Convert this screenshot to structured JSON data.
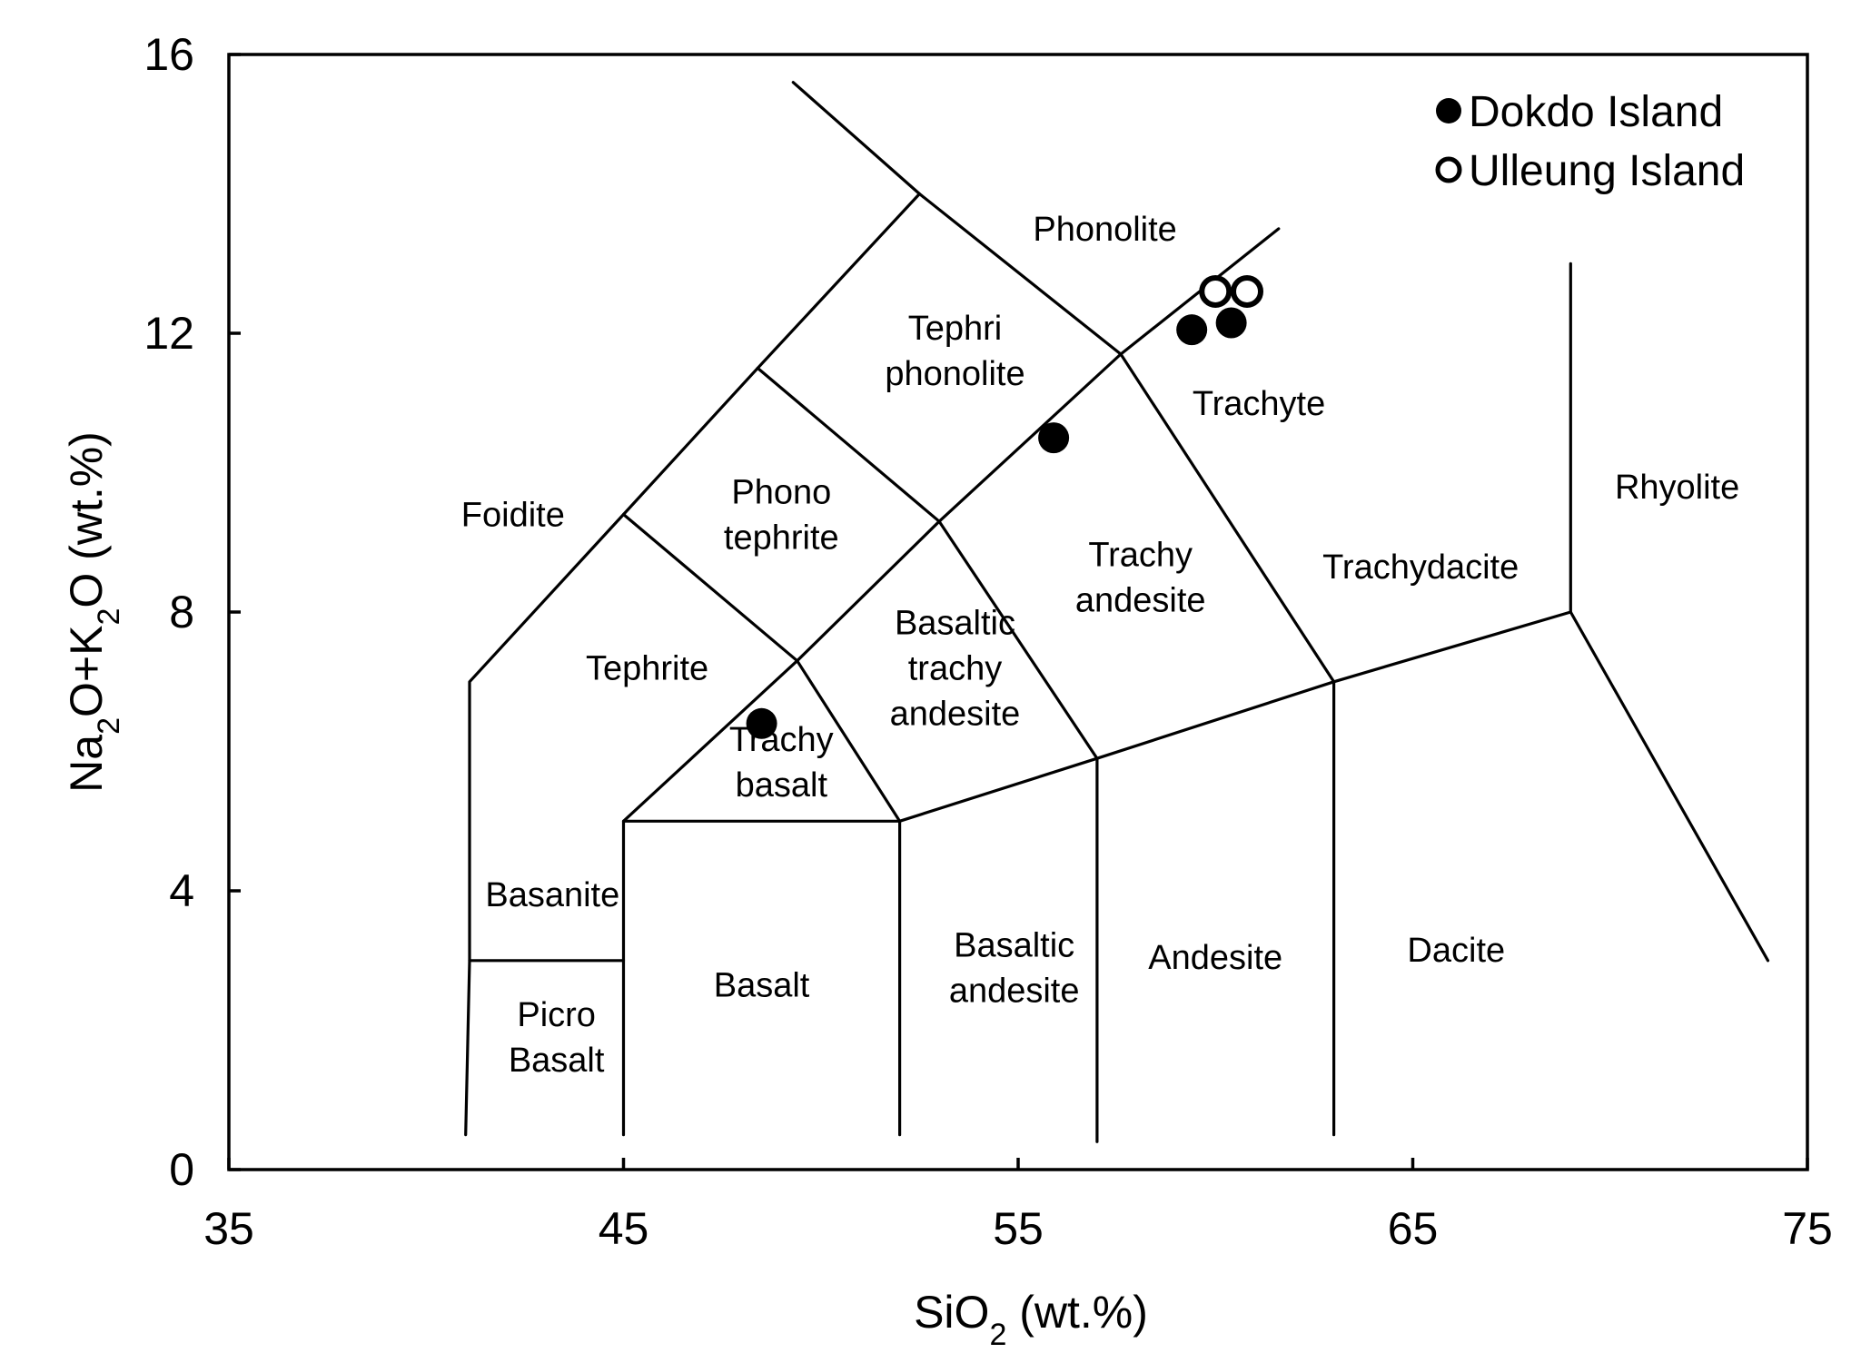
{
  "chart_data": {
    "type": "scatter",
    "title": "",
    "xlabel": {
      "main": "SiO",
      "sub": "2",
      "tail": " (wt.%)"
    },
    "ylabel": {
      "a": "Na",
      "sub1": "2",
      "b": "O+K",
      "sub2": "2",
      "c": "O (wt.%)"
    },
    "xlim": [
      35,
      75
    ],
    "ylim": [
      0,
      16
    ],
    "xticks": [
      35,
      45,
      55,
      65,
      75
    ],
    "yticks": [
      0,
      4,
      8,
      12,
      16
    ],
    "legend_position": "top-right",
    "series": [
      {
        "name": "Dokdo Island",
        "marker": "filled-circle",
        "color": "#000000",
        "points": [
          [
            48.5,
            6.4
          ],
          [
            55.9,
            10.5
          ],
          [
            59.4,
            12.05
          ],
          [
            60.4,
            12.15
          ]
        ]
      },
      {
        "name": "Ulleung Island",
        "marker": "open-circle",
        "color": "#000000",
        "points": [
          [
            60.0,
            12.6
          ],
          [
            60.8,
            12.6
          ]
        ]
      }
    ],
    "boundaries": [
      [
        [
          41,
          0.5
        ],
        [
          41.1,
          3
        ],
        [
          41.1,
          7
        ],
        [
          45,
          9.4
        ],
        [
          48.4,
          11.5
        ],
        [
          52.5,
          14
        ],
        [
          49.3,
          15.6
        ]
      ],
      [
        [
          52.5,
          14
        ],
        [
          57.6,
          11.7
        ],
        [
          61.6,
          13.5
        ]
      ],
      [
        [
          45,
          0.5
        ],
        [
          45,
          5
        ],
        [
          49.4,
          7.3
        ],
        [
          53,
          9.3
        ],
        [
          57.6,
          11.7
        ]
      ],
      [
        [
          41.1,
          3
        ],
        [
          45,
          3
        ]
      ],
      [
        [
          45,
          5
        ],
        [
          52,
          5
        ],
        [
          52,
          0.5
        ]
      ],
      [
        [
          49.4,
          7.3
        ],
        [
          52,
          5
        ],
        [
          57,
          5.9
        ],
        [
          63,
          7
        ],
        [
          69,
          8
        ],
        [
          74,
          3
        ]
      ],
      [
        [
          45,
          9.4
        ],
        [
          49.4,
          7.3
        ]
      ],
      [
        [
          48.4,
          11.5
        ],
        [
          53,
          9.3
        ],
        [
          57,
          5.9
        ],
        [
          57,
          0.4
        ]
      ],
      [
        [
          57.6,
          11.7
        ],
        [
          63,
          7
        ],
        [
          63,
          0.5
        ]
      ],
      [
        [
          69,
          8
        ],
        [
          69,
          13
        ]
      ]
    ],
    "fields": [
      {
        "lines": [
          "Phonolite"
        ],
        "x": 57.2,
        "y": 13.5
      },
      {
        "lines": [
          "Tephri",
          "phonolite"
        ],
        "x": 53.4,
        "y": 11.75
      },
      {
        "lines": [
          "Trachyte"
        ],
        "x": 61.1,
        "y": 11.0
      },
      {
        "lines": [
          "Foidite"
        ],
        "x": 42.2,
        "y": 9.4
      },
      {
        "lines": [
          "Phono",
          "tephrite"
        ],
        "x": 49,
        "y": 9.4
      },
      {
        "lines": [
          "Rhyolite"
        ],
        "x": 71.7,
        "y": 9.8
      },
      {
        "lines": [
          "Trachydacite"
        ],
        "x": 65.2,
        "y": 8.65
      },
      {
        "lines": [
          "Trachy",
          "andesite"
        ],
        "x": 58.1,
        "y": 8.5
      },
      {
        "lines": [
          "Basaltic",
          "trachy",
          "andesite"
        ],
        "x": 53.4,
        "y": 7.2
      },
      {
        "lines": [
          "Tephrite"
        ],
        "x": 45.6,
        "y": 7.2
      },
      {
        "lines": [
          "Trachy",
          "basalt"
        ],
        "x": 49,
        "y": 5.85
      },
      {
        "lines": [
          "Basanite"
        ],
        "x": 43.2,
        "y": 3.95
      },
      {
        "lines": [
          "Basalt"
        ],
        "x": 48.5,
        "y": 2.65
      },
      {
        "lines": [
          "Basaltic",
          "andesite"
        ],
        "x": 54.9,
        "y": 2.9
      },
      {
        "lines": [
          "Andesite"
        ],
        "x": 60,
        "y": 3.05
      },
      {
        "lines": [
          "Dacite"
        ],
        "x": 66.1,
        "y": 3.15
      },
      {
        "lines": [
          "Picro",
          "Basalt"
        ],
        "x": 43.3,
        "y": 1.9
      }
    ]
  }
}
